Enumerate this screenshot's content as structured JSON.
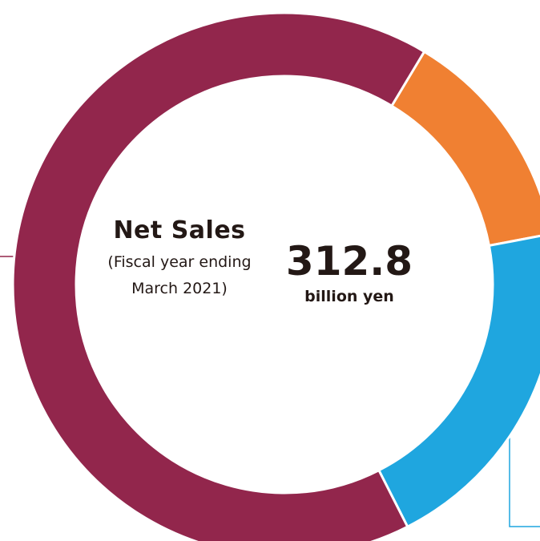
{
  "chart_data": {
    "type": "pie",
    "variant": "donut",
    "segments": [
      {
        "share": 0.134,
        "color": "#F08032"
      },
      {
        "share": 0.205,
        "color": "#1FA6DF"
      },
      {
        "share": 0.661,
        "color": "#92264C"
      }
    ],
    "center": {
      "title": "Net Sales",
      "subtitle": "(Fiscal year ending March 2021)",
      "value": "312.8",
      "unit": "billion yen"
    },
    "leader_line_colors": {
      "left": "#92264C",
      "right": "#1FA6DF"
    }
  }
}
